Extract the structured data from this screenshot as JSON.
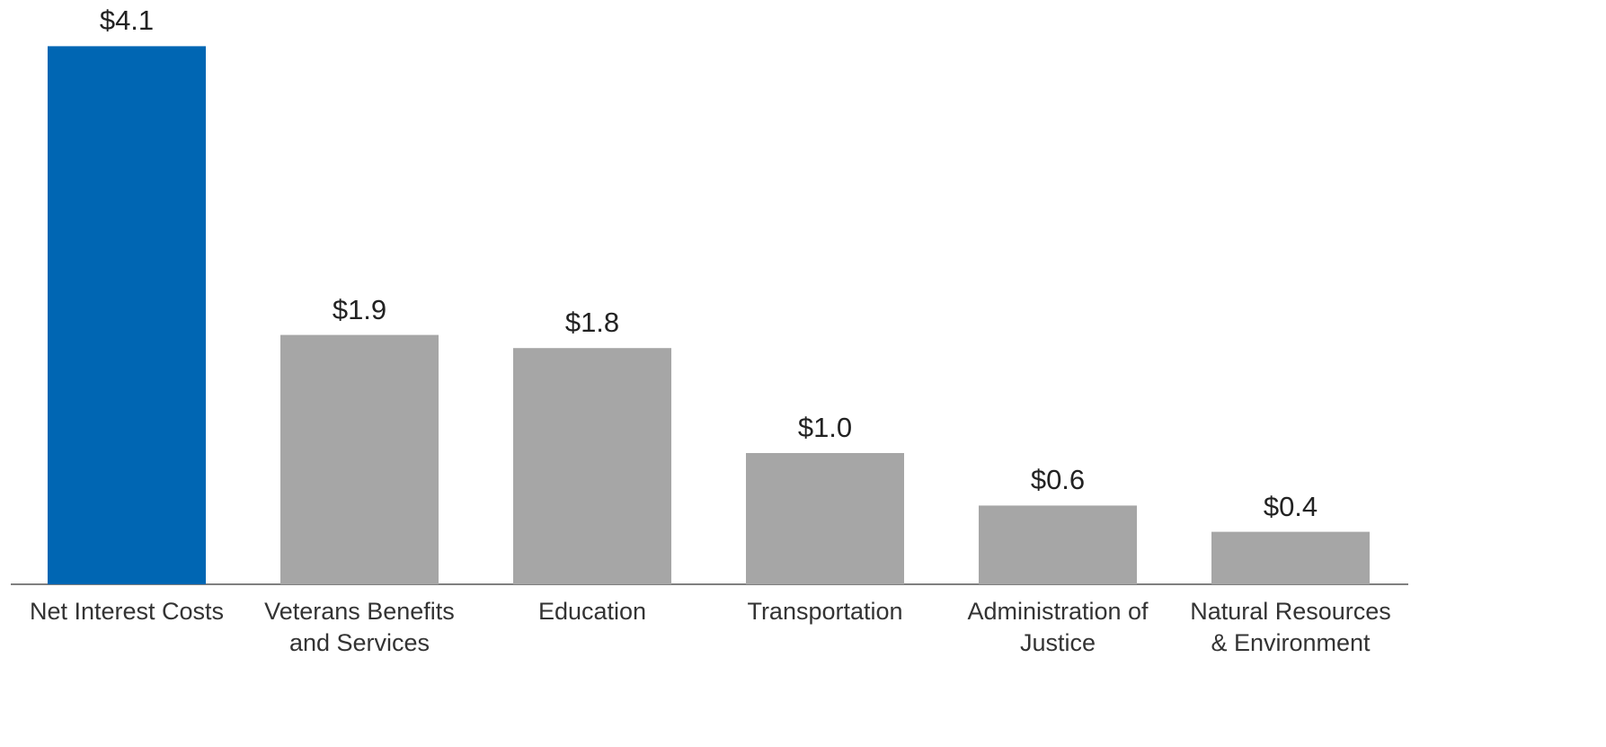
{
  "chart_data": {
    "type": "bar",
    "categories": [
      "Net Interest Costs",
      "Veterans Benefits and Services",
      "Education",
      "Transportation",
      "Administration of Justice",
      "Natural Resources & Environment"
    ],
    "values": [
      4.1,
      1.9,
      1.8,
      1.0,
      0.6,
      0.4
    ],
    "value_labels": [
      "$4.1",
      "$1.9",
      "$1.8",
      "$1.0",
      "$0.6",
      "$0.4"
    ],
    "colors": [
      "#0066b3",
      "#a6a6a6",
      "#a6a6a6",
      "#a6a6a6",
      "#a6a6a6",
      "#a6a6a6"
    ]
  }
}
